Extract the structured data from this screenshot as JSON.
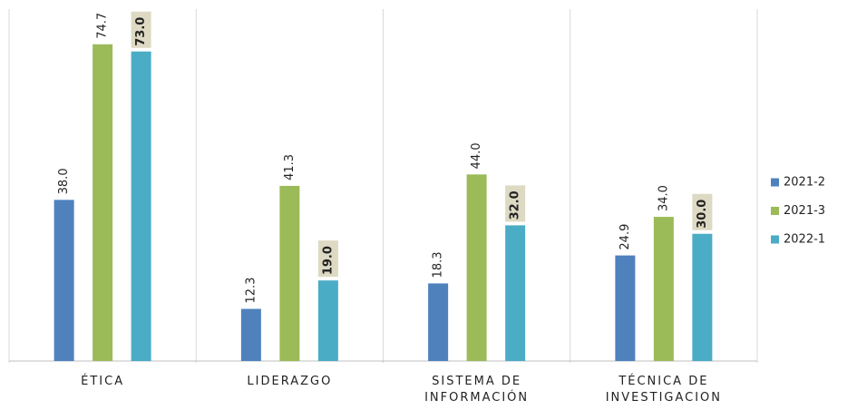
{
  "chart_data": {
    "type": "bar",
    "categories": [
      [
        "ÉTICA"
      ],
      [
        "LIDERAZGO"
      ],
      [
        "SISTEMA DE",
        "INFORMACIÓN"
      ],
      [
        "TÉCNICA DE",
        "INVESTIGACION"
      ]
    ],
    "series": [
      {
        "name": "2021-2",
        "color": "#4f81bd",
        "values": [
          38.0,
          12.3,
          18.3,
          24.9
        ],
        "value_labels": [
          "38.0",
          "12.3",
          "18.3",
          "24.9"
        ]
      },
      {
        "name": "2021-3",
        "color": "#9bbb59",
        "values": [
          74.7,
          41.3,
          44.0,
          34.0
        ],
        "value_labels": [
          "74.7",
          "41.3",
          "44.0",
          "34.0"
        ]
      },
      {
        "name": "2022-1",
        "color": "#4bacc6",
        "values": [
          73.0,
          19.0,
          32.0,
          30.0
        ],
        "value_labels": [
          "73.0",
          "19.0",
          "32.0",
          "30.0"
        ]
      }
    ],
    "ylim": [
      0,
      83
    ],
    "legend": "right"
  }
}
